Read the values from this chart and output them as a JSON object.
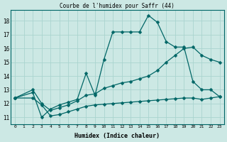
{
  "title": "Courbe de l'humidex pour Saffr (44)",
  "xlabel": "Humidex (Indice chaleur)",
  "bg_color": "#cce8e4",
  "grid_color": "#aad4cf",
  "line_color": "#006666",
  "xlim": [
    -0.5,
    23.5
  ],
  "ylim": [
    10.5,
    18.8
  ],
  "yticks": [
    11,
    12,
    13,
    14,
    15,
    16,
    17,
    18
  ],
  "xticks": [
    0,
    1,
    2,
    3,
    4,
    5,
    6,
    7,
    8,
    9,
    10,
    11,
    12,
    13,
    14,
    15,
    16,
    17,
    18,
    19,
    20,
    21,
    22,
    23
  ],
  "line1_x": [
    0,
    2,
    3,
    4,
    5,
    6,
    7,
    8,
    9,
    10,
    11,
    12,
    13,
    14,
    15,
    16,
    17,
    18,
    19,
    20,
    21,
    22,
    23
  ],
  "line1_y": [
    12.4,
    12.8,
    11.0,
    11.6,
    11.9,
    12.1,
    12.3,
    14.2,
    12.6,
    15.2,
    17.2,
    17.2,
    17.2,
    17.2,
    18.4,
    17.9,
    16.5,
    16.1,
    16.1,
    13.6,
    13.0,
    13.0,
    12.5
  ],
  "line2_x": [
    0,
    2,
    3,
    4,
    5,
    6,
    7,
    8,
    9,
    10,
    11,
    12,
    13,
    14,
    15,
    16,
    17,
    18,
    19,
    20,
    21,
    22,
    23
  ],
  "line2_y": [
    12.4,
    13.0,
    12.0,
    11.5,
    11.7,
    11.9,
    12.2,
    12.6,
    12.7,
    13.1,
    13.3,
    13.5,
    13.6,
    13.8,
    14.0,
    14.4,
    15.0,
    15.5,
    16.0,
    16.1,
    15.5,
    15.2,
    15.0
  ],
  "line3_x": [
    0,
    2,
    3,
    4,
    5,
    6,
    7,
    8,
    9,
    10,
    11,
    12,
    13,
    14,
    15,
    16,
    17,
    18,
    19,
    20,
    21,
    22,
    23
  ],
  "line3_y": [
    12.4,
    12.4,
    11.9,
    11.1,
    11.2,
    11.4,
    11.6,
    11.8,
    11.9,
    11.95,
    12.0,
    12.05,
    12.1,
    12.15,
    12.2,
    12.25,
    12.3,
    12.35,
    12.4,
    12.4,
    12.3,
    12.4,
    12.5
  ]
}
